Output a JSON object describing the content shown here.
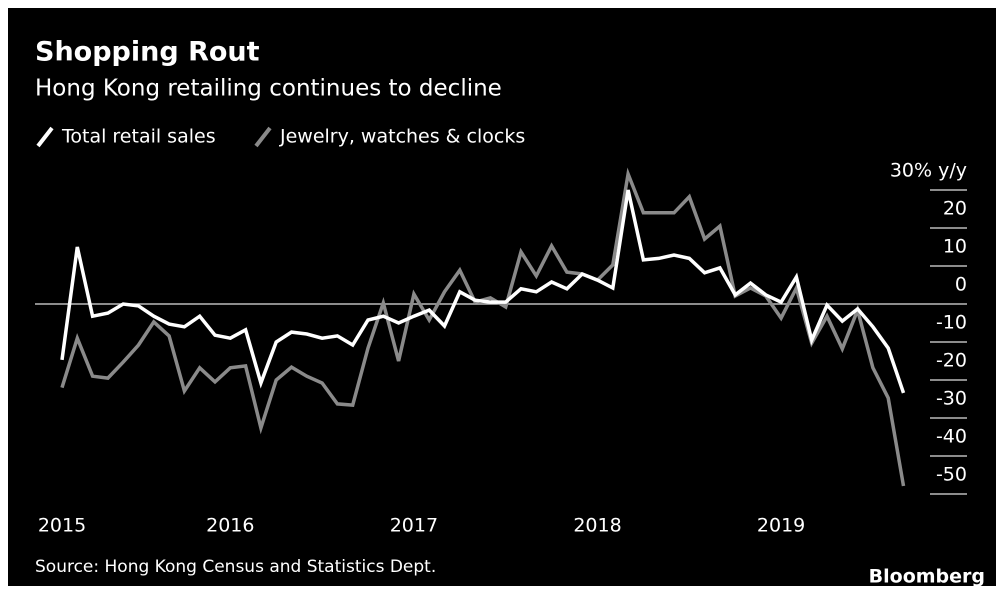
{
  "chart_data": {
    "type": "line",
    "title": "Shopping Rout",
    "subtitle": "Hong Kong retailing continues to decline",
    "source": "Source: Hong Kong Census and Statistics Dept.",
    "brand": "Bloomberg",
    "categories": [
      "2015",
      null,
      null,
      null,
      null,
      null,
      null,
      null,
      null,
      null,
      null,
      "2016",
      null,
      null,
      null,
      null,
      null,
      null,
      null,
      null,
      null,
      null,
      null,
      "2017",
      null,
      null,
      null,
      null,
      null,
      null,
      null,
      null,
      null,
      null,
      null,
      "2018",
      null,
      null,
      null,
      null,
      null,
      null,
      null,
      null,
      null,
      null,
      null,
      "2019",
      null,
      null,
      null,
      null,
      null,
      null,
      null,
      null
    ],
    "series": [
      {
        "name": "Total retail sales",
        "color": "#ffffff",
        "values": [
          -14.7,
          15,
          -3.2,
          -2.4,
          0,
          -0.5,
          -3.2,
          -5.3,
          -6,
          -3.2,
          -8.2,
          -9,
          -6.8,
          -20.8,
          -10,
          -7.4,
          -7.9,
          -9,
          -8.4,
          -10.8,
          -4.2,
          -3.2,
          -5,
          -3.2,
          -1.6,
          -5.8,
          3.2,
          1,
          0.5,
          0.5,
          4,
          3.2,
          5.8,
          4,
          7.9,
          6.3,
          4.2,
          30,
          11.6,
          12,
          12.9,
          12,
          8.2,
          9.5,
          2.4,
          5.5,
          2.4,
          0.5,
          7.1,
          -9.5,
          -0.3,
          -4.5,
          -1.3,
          -6,
          -11.6,
          -23.4
        ]
      },
      {
        "name": "Jewelry, watches & clocks",
        "color": "#8a8a8a",
        "values": [
          -22,
          -9,
          -19,
          -19.5,
          -15.3,
          -10.8,
          -4.7,
          -8.4,
          -22.9,
          -16.8,
          -20.5,
          -16.8,
          -16.3,
          -32.6,
          -20,
          -16.6,
          -19,
          -20.8,
          -26.3,
          -26.6,
          -11.6,
          0.3,
          -15,
          2.6,
          -4.2,
          3.2,
          8.9,
          0.5,
          1.6,
          -0.8,
          13.7,
          7.4,
          15.3,
          8.4,
          7.9,
          6.3,
          10.3,
          34.2,
          24,
          24,
          24,
          28.2,
          17.1,
          20.5,
          2.1,
          4.2,
          2.1,
          -3.7,
          4.2,
          -10.3,
          -3.2,
          -11.8,
          -1.6,
          -16.8,
          -24.7,
          -47.9
        ]
      }
    ],
    "ylim": [
      -52,
      35
    ],
    "yticks": [
      {
        "value": 30,
        "label": "30% y/y"
      },
      20,
      10,
      0,
      -10,
      -20,
      -30,
      -40,
      -50
    ],
    "legend": "top-left"
  }
}
